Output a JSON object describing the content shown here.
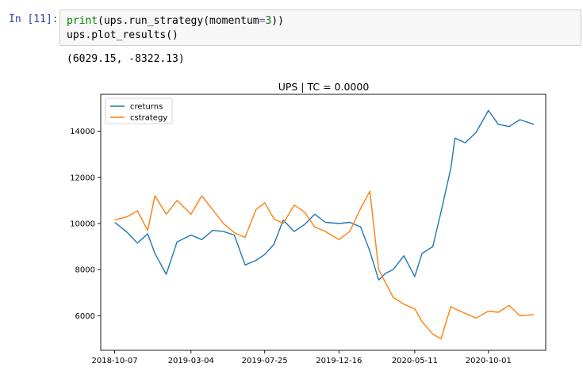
{
  "cell": {
    "prompt": "In [11]:",
    "code": {
      "line1": {
        "fn": "print",
        "open": "(",
        "obj": "ups.run_strategy(momentum",
        "eq": "=",
        "arg": "3",
        "close": "))"
      },
      "line2": "ups.plot_results()"
    },
    "output": "(6029.15, -8322.13)"
  },
  "chart_data": {
    "type": "line",
    "title": "UPS | TC = 0.0000",
    "xlabel": "",
    "ylabel": "",
    "x_ticks": [
      "2018-10-07",
      "2019-03-04",
      "2019-07-25",
      "2019-12-16",
      "2020-05-11",
      "2020-10-01"
    ],
    "y_ticks": [
      "6000",
      "8000",
      "10000",
      "12000",
      "14000"
    ],
    "ylim": [
      4500,
      15600
    ],
    "legend_position": "top-left",
    "grid": false,
    "x_dates": [
      "2018-10-07",
      "2018-11-01",
      "2018-11-20",
      "2018-12-10",
      "2018-12-24",
      "2019-01-15",
      "2019-02-05",
      "2019-03-04",
      "2019-03-25",
      "2019-04-15",
      "2019-05-06",
      "2019-05-27",
      "2019-06-17",
      "2019-07-08",
      "2019-07-25",
      "2019-08-12",
      "2019-08-30",
      "2019-09-20",
      "2019-10-10",
      "2019-10-30",
      "2019-11-20",
      "2019-12-16",
      "2020-01-06",
      "2020-01-27",
      "2020-02-14",
      "2020-03-02",
      "2020-03-16",
      "2020-03-30",
      "2020-04-20",
      "2020-05-11",
      "2020-05-25",
      "2020-06-15",
      "2020-07-01",
      "2020-07-20",
      "2020-07-28",
      "2020-08-17",
      "2020-09-07",
      "2020-10-01",
      "2020-10-20",
      "2020-11-10",
      "2020-12-01",
      "2020-12-28"
    ],
    "series": [
      {
        "name": "creturns",
        "color": "#1f77b4",
        "values": [
          10050,
          9600,
          9150,
          9550,
          8700,
          7800,
          9200,
          9500,
          9300,
          9700,
          9650,
          9500,
          8200,
          8400,
          8650,
          9100,
          10150,
          9650,
          9950,
          10400,
          10050,
          10000,
          10050,
          9850,
          8800,
          7550,
          7850,
          8000,
          8600,
          7700,
          8700,
          9000,
          10500,
          12400,
          13700,
          13500,
          13950,
          14900,
          14300,
          14200,
          14500,
          14300
        ]
      },
      {
        "name": "cstrategy",
        "color": "#ff7f0e",
        "values": [
          10150,
          10300,
          10550,
          9700,
          11200,
          10400,
          11000,
          10400,
          11200,
          10600,
          10000,
          9600,
          9400,
          10600,
          10900,
          10200,
          10000,
          10800,
          10500,
          9850,
          9650,
          9300,
          9650,
          10650,
          11400,
          8000,
          7400,
          6800,
          6500,
          6300,
          5750,
          5200,
          5000,
          6400,
          6300,
          6100,
          5900,
          6200,
          6150,
          6450,
          6000,
          6050
        ]
      }
    ]
  }
}
